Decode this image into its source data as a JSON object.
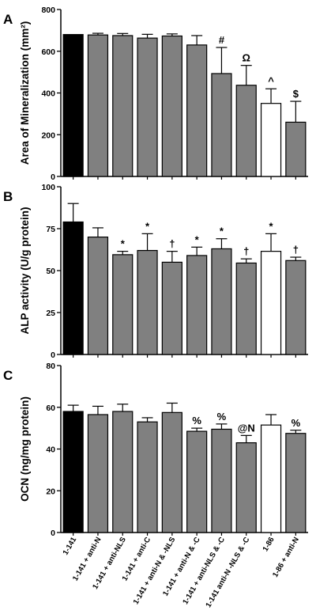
{
  "chart_data": {
    "type": "bar",
    "categories": [
      "1-141",
      "1-141 + anti-N",
      "1-141 + anti-NLS",
      "1-141 + anti-C",
      "1-141 + anti-N & -NLS",
      "1-141 + anti-N & -C",
      "1-141 + anti-NLS & -C",
      "1-141 anti-N -NLS & -C",
      "1-86",
      "1-86 + anti-N"
    ],
    "bar_colors": [
      "#000000",
      "#808080",
      "#808080",
      "#808080",
      "#808080",
      "#808080",
      "#808080",
      "#808080",
      "#ffffff",
      "#808080"
    ],
    "panels": [
      {
        "letter": "A",
        "ylabel": "Area of Mineralization (mm²)",
        "ylim": [
          0,
          800
        ],
        "yticks": [
          0,
          200,
          400,
          600,
          800
        ],
        "values": [
          680,
          678,
          675,
          663,
          673,
          630,
          493,
          437,
          350,
          260
        ],
        "errors": [
          0,
          8,
          10,
          18,
          10,
          45,
          125,
          95,
          70,
          100
        ],
        "annotations": [
          "",
          "",
          "",
          "",
          "",
          "",
          "#",
          "Ω",
          "^",
          "$"
        ]
      },
      {
        "letter": "B",
        "ylabel": "ALP activity (U/g protein)",
        "ylim": [
          0,
          100
        ],
        "yticks": [
          0,
          25,
          50,
          75,
          100
        ],
        "values": [
          79,
          70,
          59.5,
          62,
          55,
          59,
          63,
          54.5,
          61.5,
          56
        ],
        "errors": [
          11,
          5.5,
          2,
          10,
          6.5,
          5,
          6,
          2.5,
          10.5,
          2
        ],
        "annotations": [
          "",
          "",
          "*",
          "*",
          "†",
          "*",
          "*",
          "†",
          "*",
          "†"
        ]
      },
      {
        "letter": "C",
        "ylabel": "OCN (ng/mg protein)",
        "ylim": [
          0,
          80
        ],
        "yticks": [
          0,
          20,
          40,
          60,
          80
        ],
        "values": [
          58,
          56.5,
          58,
          53,
          57.5,
          48.5,
          49.5,
          43,
          51.5,
          47.5
        ],
        "errors": [
          3,
          4,
          3.5,
          2,
          4.5,
          1.5,
          2.5,
          3.5,
          5,
          1.5
        ],
        "annotations": [
          "",
          "",
          "",
          "",
          "",
          "%",
          "%",
          "@N",
          "",
          "%"
        ]
      }
    ]
  }
}
